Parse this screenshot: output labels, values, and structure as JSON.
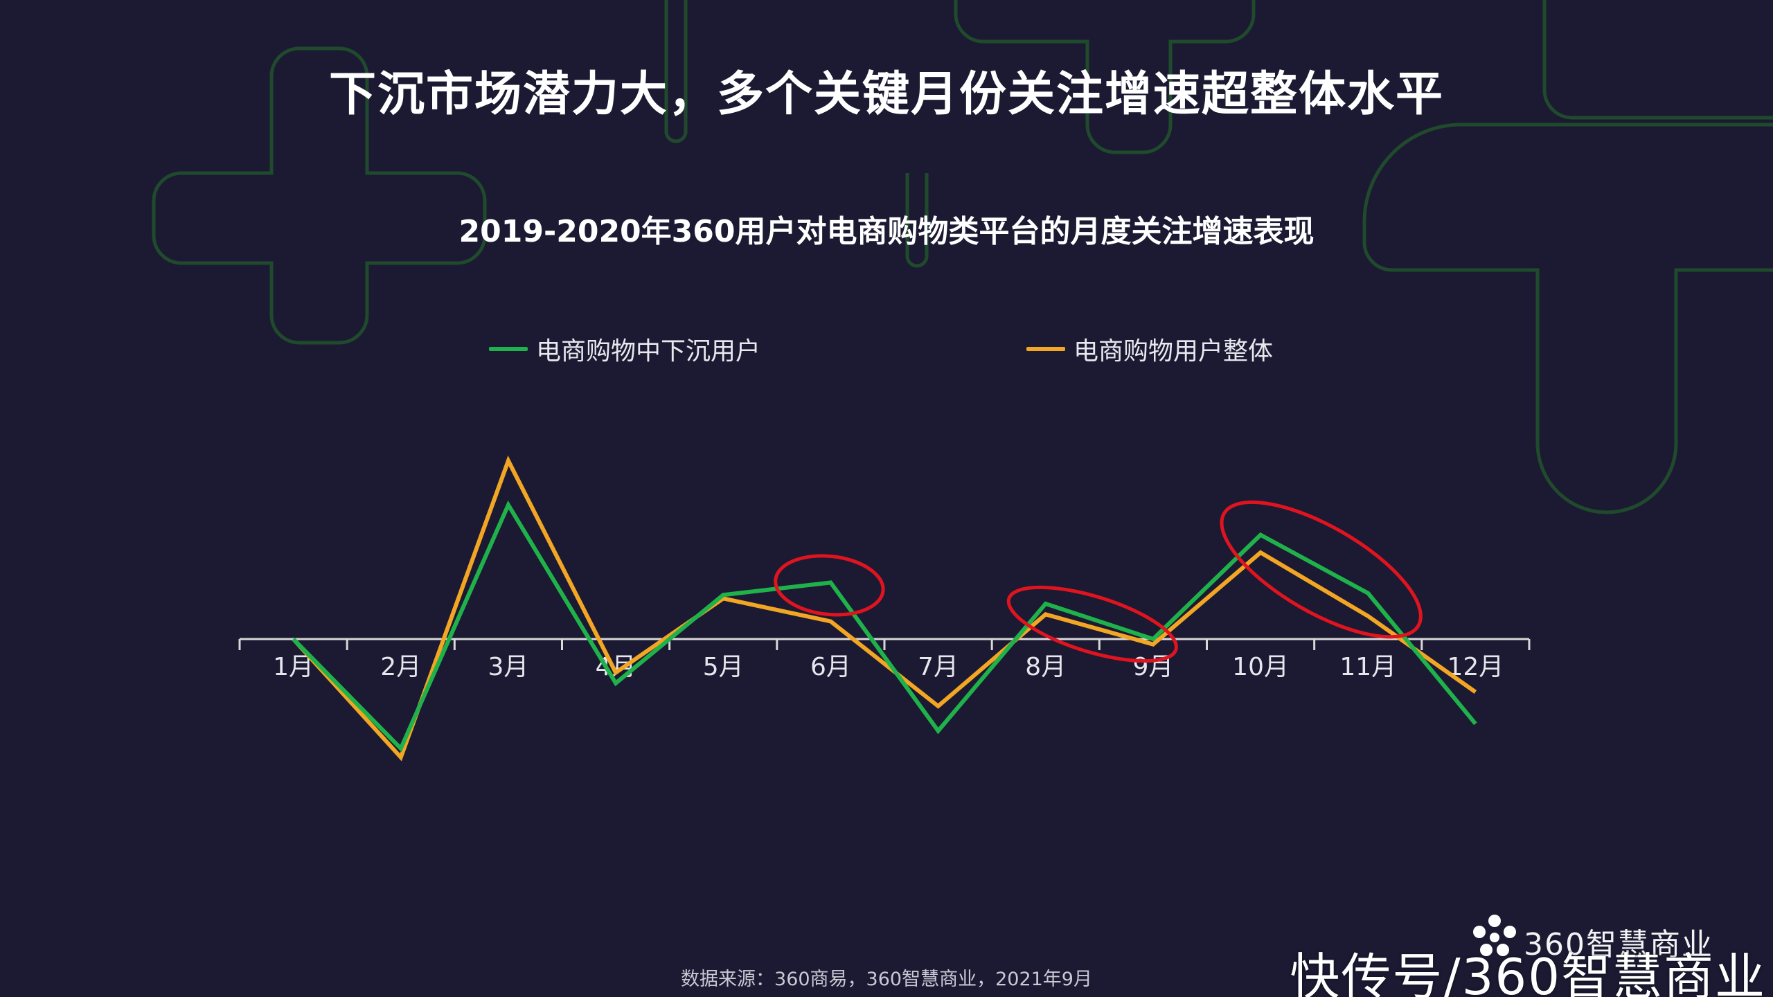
{
  "slide": {
    "headline": "下沉市场潜力大，多个关键月份关注增速超整体水平",
    "source": "数据来源：360商易，360智慧商业，2021年9月",
    "brand_logo_text": "360智慧商业",
    "watermark": "快传号/360智慧商业"
  },
  "colors": {
    "background": "#1c1a33",
    "decor_outline": "#1f4a2c",
    "series_green": "#1fb24a",
    "series_orange": "#f2a623",
    "highlight_ellipse": "#e0141e",
    "axis": "#d8d8d8"
  },
  "chart_data": {
    "type": "line",
    "title": "2019-2020年360用户对电商购物类平台的月度关注增速表现",
    "xlabel": "",
    "ylabel": "",
    "categories": [
      "1月",
      "2月",
      "3月",
      "4月",
      "5月",
      "6月",
      "7月",
      "8月",
      "9月",
      "10月",
      "11月",
      "12月"
    ],
    "series": [
      {
        "name": "电商购物中下沉用户",
        "color": "#1fb24a",
        "values": [
          0,
          -62,
          76,
          -25,
          25,
          32,
          -52,
          20,
          0,
          59,
          26,
          -48
        ]
      },
      {
        "name": "电商购物用户整体",
        "color": "#f2a623",
        "values": [
          0,
          -67,
          101,
          -19,
          23,
          10,
          -38,
          14,
          -3,
          49,
          13,
          -30
        ]
      }
    ],
    "ylim": [
      -110,
      110
    ],
    "legend_position": "top",
    "grid": false,
    "y_axis_visible": false,
    "highlights": [
      {
        "category": "6月",
        "shape": "ellipse"
      },
      {
        "categories": [
          "8月",
          "9月"
        ],
        "shape": "ellipse"
      },
      {
        "categories": [
          "10月",
          "11月"
        ],
        "shape": "ellipse"
      }
    ]
  }
}
